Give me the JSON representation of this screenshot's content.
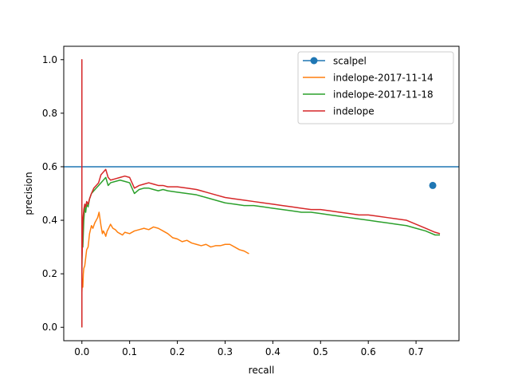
{
  "chart_data": {
    "type": "line",
    "title": "",
    "xlabel": "recall",
    "ylabel": "precision",
    "xlim": [
      -0.038,
      0.79
    ],
    "ylim": [
      -0.05,
      1.05
    ],
    "xticks": [
      0.0,
      0.1,
      0.2,
      0.3,
      0.4,
      0.5,
      0.6,
      0.7
    ],
    "xtick_labels": [
      "0.0",
      "0.1",
      "0.2",
      "0.3",
      "0.4",
      "0.5",
      "0.6",
      "0.7"
    ],
    "yticks": [
      0.0,
      0.2,
      0.4,
      0.6,
      0.8,
      1.0
    ],
    "ytick_labels": [
      "0.0",
      "0.2",
      "0.4",
      "0.6",
      "0.8",
      "1.0"
    ],
    "grid": false,
    "legend_position": "top-right",
    "series": [
      {
        "name": "scalpel",
        "color": "#1f77b4",
        "style": "marker-point-with-hline",
        "point": {
          "x": 0.735,
          "y": 0.53
        },
        "hline_y": 0.6
      },
      {
        "name": "indelope-2017-11-14",
        "color": "#ff7f0e",
        "style": "line",
        "x": [
          0.0,
          0.0,
          0.001,
          0.002,
          0.003,
          0.004,
          0.006,
          0.008,
          0.01,
          0.013,
          0.016,
          0.02,
          0.023,
          0.027,
          0.03,
          0.033,
          0.036,
          0.04,
          0.043,
          0.045,
          0.048,
          0.05,
          0.053,
          0.056,
          0.06,
          0.065,
          0.07,
          0.075,
          0.08,
          0.085,
          0.09,
          0.1,
          0.11,
          0.12,
          0.13,
          0.14,
          0.15,
          0.16,
          0.17,
          0.18,
          0.19,
          0.2,
          0.21,
          0.22,
          0.23,
          0.24,
          0.25,
          0.26,
          0.27,
          0.28,
          0.29,
          0.3,
          0.31,
          0.32,
          0.33,
          0.34,
          0.35
        ],
        "y": [
          0.0,
          0.13,
          0.18,
          0.15,
          0.2,
          0.22,
          0.23,
          0.26,
          0.29,
          0.3,
          0.35,
          0.38,
          0.37,
          0.39,
          0.4,
          0.41,
          0.43,
          0.38,
          0.35,
          0.36,
          0.35,
          0.34,
          0.36,
          0.37,
          0.385,
          0.37,
          0.365,
          0.355,
          0.35,
          0.345,
          0.355,
          0.35,
          0.36,
          0.365,
          0.37,
          0.365,
          0.375,
          0.37,
          0.36,
          0.35,
          0.335,
          0.33,
          0.32,
          0.325,
          0.315,
          0.31,
          0.305,
          0.31,
          0.3,
          0.305,
          0.305,
          0.31,
          0.31,
          0.3,
          0.29,
          0.285,
          0.275
        ]
      },
      {
        "name": "indelope-2017-11-18",
        "color": "#2ca02c",
        "style": "line",
        "x": [
          0.0,
          0.0,
          0.001,
          0.002,
          0.004,
          0.006,
          0.008,
          0.01,
          0.013,
          0.016,
          0.02,
          0.025,
          0.03,
          0.035,
          0.04,
          0.045,
          0.05,
          0.055,
          0.06,
          0.07,
          0.08,
          0.09,
          0.1,
          0.11,
          0.12,
          0.13,
          0.14,
          0.15,
          0.16,
          0.17,
          0.18,
          0.2,
          0.22,
          0.24,
          0.26,
          0.28,
          0.3,
          0.32,
          0.34,
          0.36,
          0.38,
          0.4,
          0.42,
          0.44,
          0.46,
          0.48,
          0.5,
          0.52,
          0.54,
          0.56,
          0.58,
          0.6,
          0.62,
          0.64,
          0.66,
          0.68,
          0.7,
          0.72,
          0.74,
          0.75
        ],
        "y": [
          0.0,
          0.2,
          0.35,
          0.3,
          0.4,
          0.45,
          0.43,
          0.46,
          0.45,
          0.48,
          0.5,
          0.51,
          0.52,
          0.53,
          0.54,
          0.55,
          0.56,
          0.53,
          0.54,
          0.545,
          0.55,
          0.545,
          0.54,
          0.5,
          0.515,
          0.52,
          0.52,
          0.515,
          0.51,
          0.515,
          0.51,
          0.505,
          0.5,
          0.495,
          0.485,
          0.475,
          0.465,
          0.46,
          0.455,
          0.455,
          0.45,
          0.445,
          0.44,
          0.435,
          0.43,
          0.43,
          0.425,
          0.42,
          0.415,
          0.41,
          0.405,
          0.4,
          0.395,
          0.39,
          0.385,
          0.38,
          0.37,
          0.36,
          0.345,
          0.345
        ]
      },
      {
        "name": "indelope",
        "color": "#d62728",
        "style": "line",
        "x": [
          0.0,
          0.0,
          0.0,
          0.001,
          0.002,
          0.004,
          0.006,
          0.008,
          0.01,
          0.013,
          0.016,
          0.02,
          0.025,
          0.03,
          0.035,
          0.04,
          0.045,
          0.05,
          0.055,
          0.06,
          0.07,
          0.08,
          0.09,
          0.1,
          0.11,
          0.12,
          0.13,
          0.14,
          0.15,
          0.16,
          0.17,
          0.18,
          0.2,
          0.22,
          0.24,
          0.26,
          0.28,
          0.3,
          0.32,
          0.34,
          0.36,
          0.38,
          0.4,
          0.42,
          0.44,
          0.46,
          0.48,
          0.5,
          0.52,
          0.54,
          0.56,
          0.58,
          0.6,
          0.62,
          0.64,
          0.66,
          0.68,
          0.7,
          0.72,
          0.74,
          0.75
        ],
        "y": [
          0.0,
          1.0,
          0.25,
          0.3,
          0.4,
          0.44,
          0.46,
          0.45,
          0.47,
          0.46,
          0.48,
          0.5,
          0.52,
          0.53,
          0.54,
          0.57,
          0.58,
          0.59,
          0.56,
          0.55,
          0.555,
          0.56,
          0.565,
          0.56,
          0.52,
          0.53,
          0.535,
          0.54,
          0.535,
          0.53,
          0.53,
          0.525,
          0.525,
          0.52,
          0.515,
          0.505,
          0.495,
          0.485,
          0.48,
          0.475,
          0.47,
          0.465,
          0.46,
          0.455,
          0.45,
          0.445,
          0.44,
          0.44,
          0.435,
          0.43,
          0.425,
          0.42,
          0.42,
          0.415,
          0.41,
          0.405,
          0.4,
          0.385,
          0.37,
          0.355,
          0.35
        ]
      }
    ]
  }
}
